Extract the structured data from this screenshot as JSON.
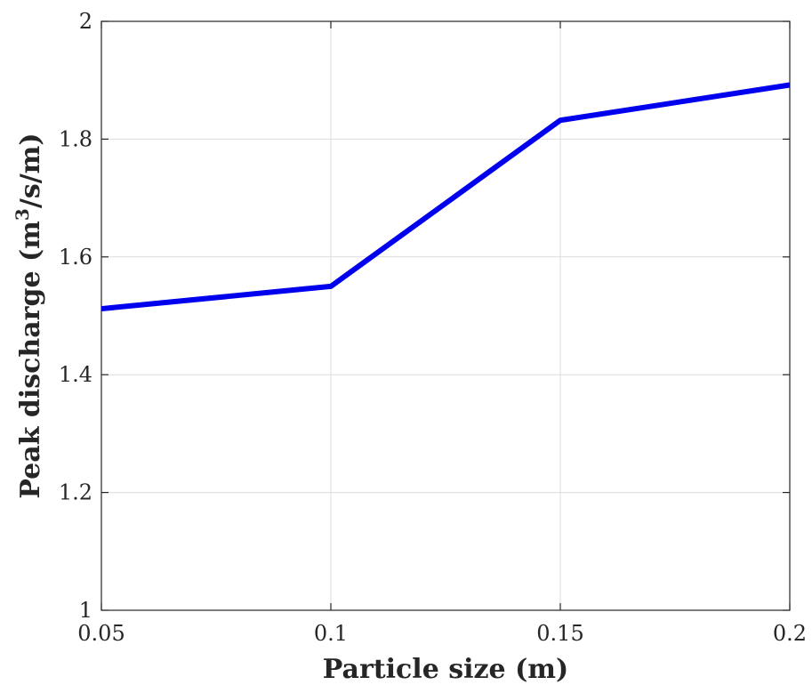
{
  "chart_data": {
    "type": "line",
    "xlabel": "Particle size (m)",
    "ylabel_main": "Peak discharge (m",
    "ylabel_sup": "3",
    "ylabel_tail": "/s/m)",
    "xlim": [
      0.05,
      0.2
    ],
    "ylim": [
      1,
      2
    ],
    "x_ticks": [
      0.05,
      0.1,
      0.15,
      0.2
    ],
    "x_tick_labels": [
      "0.05",
      "0.1",
      "0.15",
      "0.2"
    ],
    "y_ticks": [
      1,
      1.2,
      1.4,
      1.6,
      1.8,
      2
    ],
    "y_tick_labels": [
      "1",
      "1.2",
      "1.4",
      "1.6",
      "1.8",
      "2"
    ],
    "grid": true,
    "series": [
      {
        "color": "#0000ee",
        "x": [
          0.05,
          0.1,
          0.15,
          0.2
        ],
        "y": [
          1.512,
          1.55,
          1.832,
          1.892
        ]
      }
    ]
  }
}
